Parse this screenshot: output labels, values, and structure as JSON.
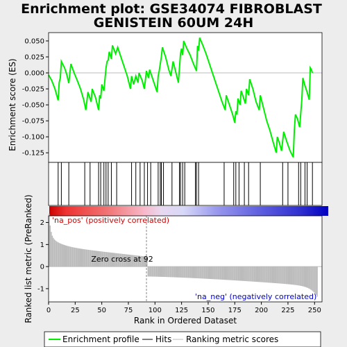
{
  "chart_data": {
    "type": "line",
    "title_line1": "Enrichment plot: GSE34074 FIBROBLAST",
    "title_line2": "GENISTEIN 60UM 24H",
    "es_panel": {
      "ylabel": "Enrichment score (ES)",
      "ylim": [
        -0.14,
        0.063
      ],
      "yticks": [
        0.05,
        0.025,
        0.0,
        -0.025,
        -0.05,
        -0.075,
        -0.1,
        -0.125
      ],
      "ytick_labels": [
        "0.050",
        "0.025",
        "0.000",
        "-0.025",
        "-0.050",
        "-0.075",
        "-0.100",
        "-0.125"
      ],
      "line_color": "#00ee00",
      "points": [
        [
          0,
          -0.003
        ],
        [
          3,
          -0.012
        ],
        [
          6,
          -0.025
        ],
        [
          9,
          -0.043
        ],
        [
          10,
          -0.015
        ],
        [
          11,
          -0.008
        ],
        [
          12,
          0.018
        ],
        [
          15,
          0.008
        ],
        [
          17,
          -0.002
        ],
        [
          19,
          -0.016
        ],
        [
          21,
          0.014
        ],
        [
          24,
          0.0
        ],
        [
          27,
          -0.012
        ],
        [
          30,
          -0.025
        ],
        [
          33,
          -0.042
        ],
        [
          35,
          -0.058
        ],
        [
          37,
          -0.03
        ],
        [
          40,
          -0.045
        ],
        [
          41,
          -0.025
        ],
        [
          44,
          -0.038
        ],
        [
          47,
          -0.058
        ],
        [
          48,
          -0.035
        ],
        [
          49,
          -0.04
        ],
        [
          50,
          -0.018
        ],
        [
          52,
          -0.028
        ],
        [
          54,
          0.008
        ],
        [
          55,
          0.018
        ],
        [
          56,
          0.02
        ],
        [
          57,
          0.033
        ],
        [
          59,
          0.022
        ],
        [
          60,
          0.043
        ],
        [
          63,
          0.03
        ],
        [
          65,
          0.04
        ],
        [
          68,
          0.025
        ],
        [
          71,
          0.01
        ],
        [
          74,
          -0.005
        ],
        [
          77,
          -0.025
        ],
        [
          78,
          -0.005
        ],
        [
          80,
          -0.018
        ],
        [
          82,
          -0.005
        ],
        [
          84,
          -0.015
        ],
        [
          85,
          0.0
        ],
        [
          88,
          -0.012
        ],
        [
          90,
          -0.025
        ],
        [
          92,
          0.003
        ],
        [
          94,
          -0.008
        ],
        [
          95,
          0.005
        ],
        [
          97,
          -0.005
        ],
        [
          99,
          -0.015
        ],
        [
          102,
          -0.03
        ],
        [
          103,
          -0.005
        ],
        [
          104,
          0.003
        ],
        [
          106,
          0.025
        ],
        [
          107,
          0.04
        ],
        [
          110,
          0.025
        ],
        [
          113,
          0.005
        ],
        [
          115,
          -0.005
        ],
        [
          117,
          0.018
        ],
        [
          119,
          0.005
        ],
        [
          122,
          -0.015
        ],
        [
          124,
          0.03
        ],
        [
          125,
          0.038
        ],
        [
          126,
          0.028
        ],
        [
          127,
          0.05
        ],
        [
          130,
          0.038
        ],
        [
          133,
          0.028
        ],
        [
          136,
          0.015
        ],
        [
          139,
          0.003
        ],
        [
          140,
          0.042
        ],
        [
          141,
          0.035
        ],
        [
          142,
          0.055
        ],
        [
          145,
          0.043
        ],
        [
          148,
          0.03
        ],
        [
          151,
          0.015
        ],
        [
          154,
          0.0
        ],
        [
          157,
          -0.015
        ],
        [
          160,
          -0.03
        ],
        [
          163,
          -0.045
        ],
        [
          166,
          -0.058
        ],
        [
          167,
          -0.035
        ],
        [
          170,
          -0.05
        ],
        [
          173,
          -0.065
        ],
        [
          175,
          -0.078
        ],
        [
          176,
          -0.06
        ],
        [
          177,
          -0.065
        ],
        [
          178,
          -0.04
        ],
        [
          180,
          -0.05
        ],
        [
          181,
          -0.028
        ],
        [
          183,
          -0.038
        ],
        [
          185,
          -0.048
        ],
        [
          186,
          -0.025
        ],
        [
          188,
          -0.035
        ],
        [
          189,
          -0.01
        ],
        [
          192,
          -0.025
        ],
        [
          195,
          -0.045
        ],
        [
          198,
          -0.058
        ],
        [
          199,
          -0.035
        ],
        [
          202,
          -0.055
        ],
        [
          205,
          -0.075
        ],
        [
          208,
          -0.09
        ],
        [
          211,
          -0.108
        ],
        [
          214,
          -0.125
        ],
        [
          215,
          -0.1
        ],
        [
          217,
          -0.11
        ],
        [
          219,
          -0.122
        ],
        [
          221,
          -0.092
        ],
        [
          224,
          -0.108
        ],
        [
          227,
          -0.122
        ],
        [
          230,
          -0.132
        ],
        [
          231,
          -0.09
        ],
        [
          232,
          -0.065
        ],
        [
          234,
          -0.072
        ],
        [
          236,
          -0.085
        ],
        [
          238,
          -0.042
        ],
        [
          239,
          -0.008
        ],
        [
          241,
          -0.02
        ],
        [
          243,
          -0.03
        ],
        [
          245,
          -0.042
        ],
        [
          246,
          0.008
        ],
        [
          247,
          0.005
        ],
        [
          248,
          0.0
        ]
      ]
    },
    "hits_panel": {
      "hit_ranks": [
        9,
        12,
        19,
        34,
        39,
        47,
        49,
        52,
        54,
        56,
        59,
        64,
        78,
        82,
        86,
        90,
        93,
        96,
        103,
        105,
        106,
        108,
        116,
        123,
        124,
        126,
        128,
        138,
        139,
        141,
        165,
        174,
        176,
        179,
        184,
        188,
        199,
        220,
        225,
        235,
        237,
        241,
        243,
        248
      ]
    },
    "metric_panel": {
      "ylabel": "Ranked list metric (PreRanked)",
      "xlabel": "Rank in Ordered Dataset",
      "ylim": [
        -1.6,
        2.3
      ],
      "yticks": [
        2,
        1,
        0,
        -1
      ],
      "ytick_labels": [
        "2",
        "1",
        "0",
        "-1"
      ],
      "xticks": [
        0,
        25,
        50,
        75,
        100,
        125,
        150,
        175,
        200,
        225,
        250
      ],
      "xlim": [
        0,
        257
      ],
      "total_ranks": 253,
      "zero_cross_rank": 92,
      "zero_cross_label": "Zero cross at 92",
      "pos_label": "'na_pos' (positively correlated)",
      "neg_label": "'na_neg' (negatively correlated)",
      "pos_color": "#cc0000",
      "neg_color": "#0000cc"
    },
    "legend": {
      "items": [
        {
          "label": "Enrichment profile",
          "color": "#00ee00"
        },
        {
          "label": "Hits",
          "color": "#000000"
        },
        {
          "label": "Ranking metric scores",
          "color": "#bbbbbb"
        }
      ]
    }
  }
}
